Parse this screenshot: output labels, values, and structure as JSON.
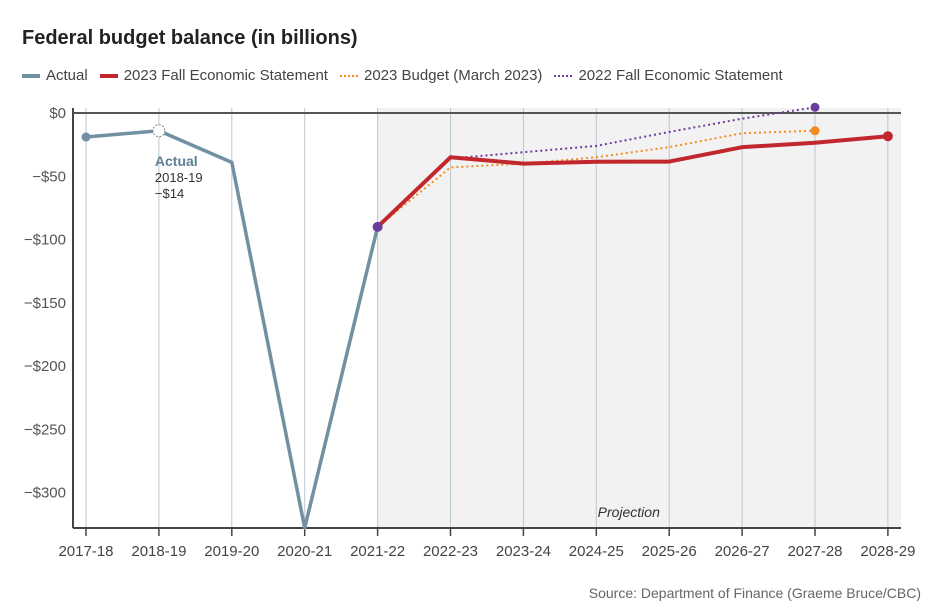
{
  "chart_data": {
    "type": "line",
    "title": "Federal budget balance (in billions)",
    "xlabel": "",
    "ylabel": "",
    "categories": [
      "2017-18",
      "2018-19",
      "2019-20",
      "2020-21",
      "2021-22",
      "2022-23",
      "2023-24",
      "2024-25",
      "2025-26",
      "2026-27",
      "2027-28",
      "2028-29"
    ],
    "ylim": [
      -330,
      5
    ],
    "yticks": [
      0,
      -50,
      -100,
      -150,
      -200,
      -250,
      -300
    ],
    "ytick_labels": [
      "$0",
      "−$50",
      "−$100",
      "−$150",
      "−$200",
      "−$250",
      "−$300"
    ],
    "grid": "vertical",
    "legend": "top",
    "projection_label": "Projection",
    "projection_start": "2021-22",
    "series": [
      {
        "name": "Actual",
        "color": "#7191a2",
        "style": "solid",
        "values": [
          -19,
          -14,
          -39,
          -328,
          -90,
          null,
          null,
          null,
          null,
          null,
          null,
          null
        ]
      },
      {
        "name": "2023 Fall Economic Statement",
        "color": "#c1272d",
        "style": "solid",
        "values": [
          null,
          null,
          null,
          null,
          -90,
          -35,
          -40,
          -38.5,
          -38.4,
          -27,
          -23.5,
          -18.4
        ]
      },
      {
        "name": "2023 Budget (March 2023)",
        "color": "#f28c1e",
        "style": "dotted",
        "values": [
          null,
          null,
          null,
          null,
          -90,
          -43,
          -40,
          -35,
          -27,
          -16,
          -14,
          null
        ]
      },
      {
        "name": "2022 Fall Economic Statement",
        "color": "#6a3d9a",
        "style": "dotted",
        "values": [
          null,
          null,
          null,
          null,
          -90,
          -36,
          -31,
          -26,
          -15,
          -4.5,
          4.5,
          null
        ]
      }
    ],
    "annotation": {
      "title": "Actual",
      "line1": "2018-19",
      "line2": "−$14"
    }
  },
  "source": "Source: Department of Finance (Graeme Bruce/CBC)"
}
